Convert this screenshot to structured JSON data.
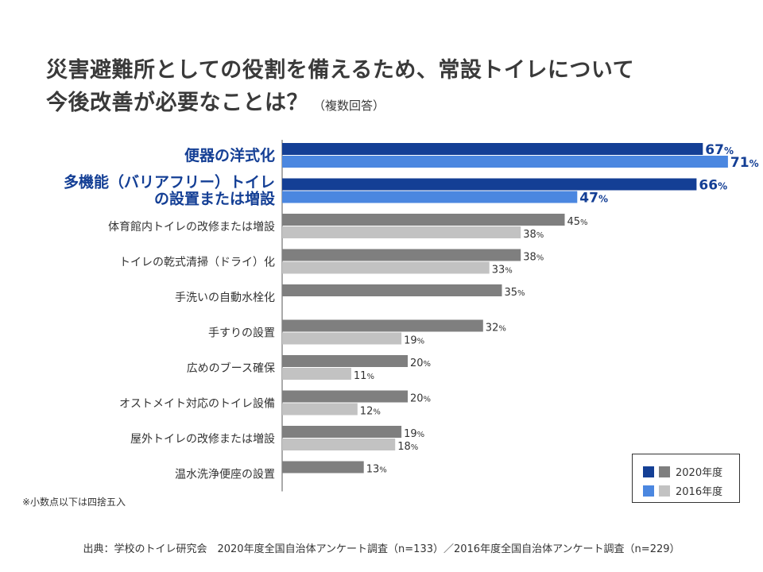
{
  "title": {
    "line1": "災害避難所としての役割を備えるため、常設トイレについて",
    "line2": "今後改善が必要なことは？",
    "qualifier": "（複数回答）"
  },
  "note": "※小数点以下は四捨五入",
  "source": "出典：学校のトイレ研究会　2020年度全国自治体アンケート調査（n=133）／2016年度全国自治体アンケート調査（n=229）",
  "colors": {
    "highlight_2020": "#143f95",
    "highlight_2016": "#4b87e0",
    "normal_2020": "#7f7f7f",
    "normal_2016": "#c2c2c2",
    "highlight_text": "#143f95",
    "normal_text": "#333333"
  },
  "legend": {
    "items": [
      {
        "label": "2020年度",
        "swatches": [
          "#143f95",
          "#7f7f7f"
        ]
      },
      {
        "label": "2016年度",
        "swatches": [
          "#4b87e0",
          "#c2c2c2"
        ]
      }
    ],
    "position": "bottom-right"
  },
  "chart_data": {
    "type": "bar",
    "orientation": "horizontal",
    "title": "災害避難所としての役割を備えるため、常設トイレについて今後改善が必要なことは？（複数回答）",
    "unit": "%",
    "xlim": [
      0,
      100
    ],
    "grid": false,
    "series": [
      {
        "name": "2020年度",
        "values": [
          67,
          66,
          45,
          38,
          35,
          32,
          20,
          20,
          19,
          13
        ]
      },
      {
        "name": "2016年度",
        "values": [
          71,
          47,
          38,
          33,
          null,
          19,
          11,
          12,
          18,
          null
        ]
      }
    ],
    "categories": [
      {
        "lines": [
          "便器の洋式化"
        ],
        "highlight": true
      },
      {
        "lines": [
          "多機能（バリアフリー）トイレ",
          "の設置または増設"
        ],
        "highlight": true
      },
      {
        "lines": [
          "体育館内トイレの改修または増設"
        ],
        "highlight": false
      },
      {
        "lines": [
          "トイレの乾式清掃（ドライ）化"
        ],
        "highlight": false
      },
      {
        "lines": [
          "手洗いの自動水栓化"
        ],
        "highlight": false
      },
      {
        "lines": [
          "手すりの設置"
        ],
        "highlight": false
      },
      {
        "lines": [
          "広めのブース確保"
        ],
        "highlight": false
      },
      {
        "lines": [
          "オストメイト対応のトイレ設備"
        ],
        "highlight": false
      },
      {
        "lines": [
          "屋外トイレの改修または増設"
        ],
        "highlight": false
      },
      {
        "lines": [
          "温水洗浄便座の設置"
        ],
        "highlight": false
      }
    ]
  }
}
